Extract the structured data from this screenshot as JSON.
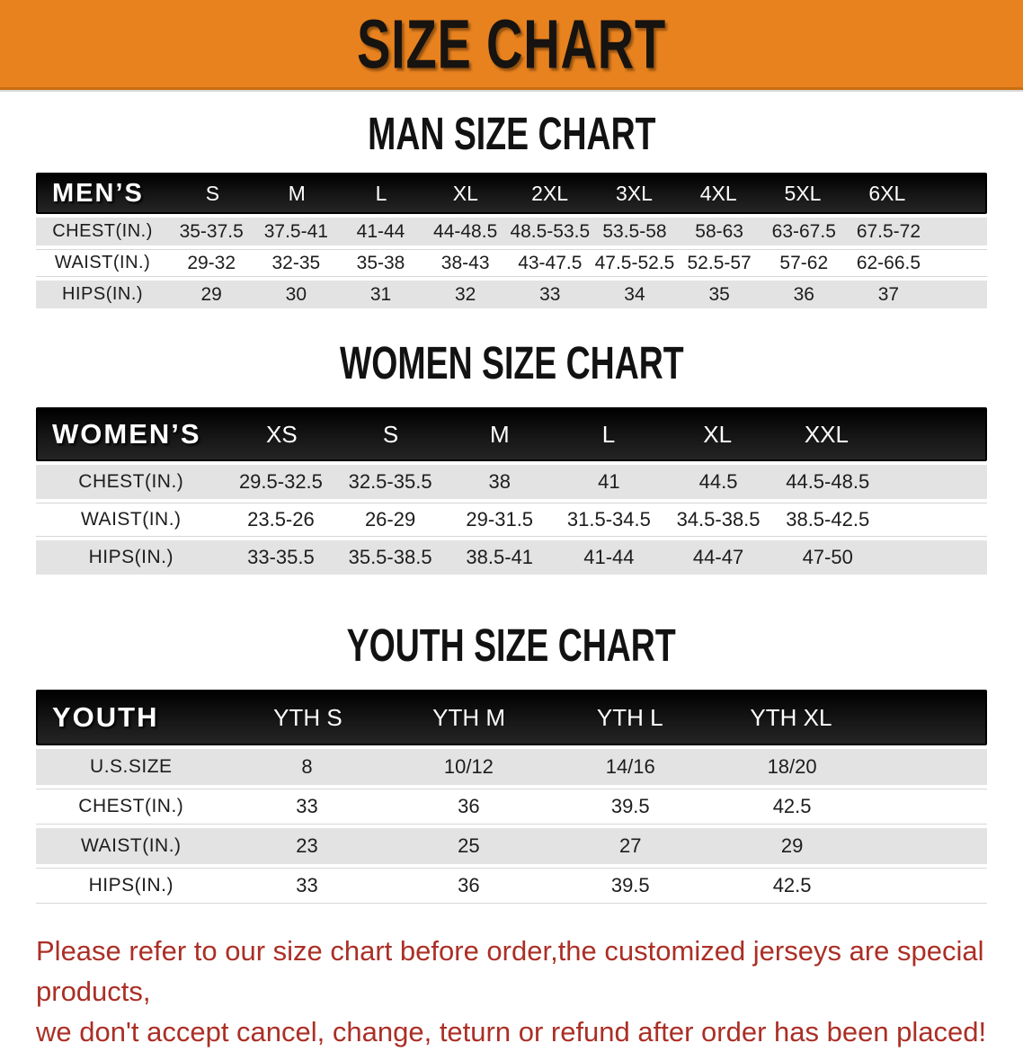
{
  "banner": {
    "title": "SIZE CHART"
  },
  "colors": {
    "banner_orange": "#E8821E",
    "header_bar_black": "#101010",
    "row_gray": "#E3E3E3",
    "notice_red": "#AB2F26"
  },
  "sections": [
    {
      "heading": "MAN SIZE CHART",
      "table": {
        "header_label": "MEN’S",
        "columns": [
          "S",
          "M",
          "L",
          "XL",
          "2XL",
          "3XL",
          "4XL",
          "5XL",
          "6XL"
        ],
        "rows": [
          {
            "label": "CHEST(IN.)",
            "values": [
              "35-37.5",
              "37.5-41",
              "41-44",
              "44-48.5",
              "48.5-53.5",
              "53.5-58",
              "58-63",
              "63-67.5",
              "67.5-72"
            ]
          },
          {
            "label": "WAIST(IN.)",
            "values": [
              "29-32",
              "32-35",
              "35-38",
              "38-43",
              "43-47.5",
              "47.5-52.5",
              "52.5-57",
              "57-62",
              "62-66.5"
            ]
          },
          {
            "label": "HIPS(IN.)",
            "values": [
              "29",
              "30",
              "31",
              "32",
              "33",
              "34",
              "35",
              "36",
              "37"
            ]
          }
        ]
      }
    },
    {
      "heading": "WOMEN SIZE CHART",
      "table": {
        "header_label": "WOMEN’S",
        "columns": [
          "XS",
          "S",
          "M",
          "L",
          "XL",
          "XXL"
        ],
        "rows": [
          {
            "label": "CHEST(IN.)",
            "values": [
              "29.5-32.5",
              "32.5-35.5",
              "38",
              "41",
              "44.5",
              "44.5-48.5"
            ]
          },
          {
            "label": "WAIST(IN.)",
            "values": [
              "23.5-26",
              "26-29",
              "29-31.5",
              "31.5-34.5",
              "34.5-38.5",
              "38.5-42.5"
            ]
          },
          {
            "label": "HIPS(IN.)",
            "values": [
              "33-35.5",
              "35.5-38.5",
              "38.5-41",
              "41-44",
              "44-47",
              "47-50"
            ]
          }
        ]
      }
    },
    {
      "heading": "YOUTH SIZE CHART",
      "table": {
        "header_label": "YOUTH",
        "columns": [
          "YTH S",
          "YTH M",
          "YTH L",
          "YTH XL"
        ],
        "rows": [
          {
            "label": "U.S.SIZE",
            "values": [
              "8",
              "10/12",
              "14/16",
              "18/20"
            ]
          },
          {
            "label": "CHEST(IN.)",
            "values": [
              "33",
              "36",
              "39.5",
              "42.5"
            ]
          },
          {
            "label": "WAIST(IN.)",
            "values": [
              "23",
              "25",
              "27",
              "29"
            ]
          },
          {
            "label": "HIPS(IN.)",
            "values": [
              "33",
              "36",
              "39.5",
              "42.5"
            ]
          }
        ]
      }
    }
  ],
  "footer": {
    "line1": "Please refer to our size chart before order,the customized jerseys are special products,",
    "line2": "we don't accept cancel, change, teturn or refund after order has been placed!"
  }
}
